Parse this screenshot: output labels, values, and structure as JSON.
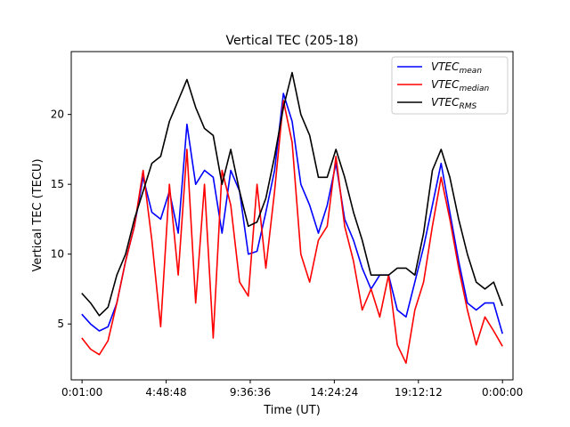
{
  "chart_data": {
    "type": "line",
    "title": "Vertical TEC (205-18)",
    "xlabel": "Time (UT)",
    "ylabel": "Vertical TEC (TECU)",
    "x_unit": "hours (UT)",
    "xlim": [
      -0.6,
      24.6
    ],
    "ylim": [
      1.0,
      24.5
    ],
    "x_ticks": [
      0.0167,
      4.8133,
      9.61,
      14.4067,
      19.2033,
      24.0
    ],
    "x_tick_labels": [
      "0:01:00",
      "4:48:48",
      "9:36:36",
      "14:24:24",
      "19:12:12",
      "0:00:00"
    ],
    "y_ticks": [
      5,
      10,
      15,
      20
    ],
    "y_tick_labels": [
      "5",
      "10",
      "15",
      "20"
    ],
    "grid": false,
    "legend_position": "top-right",
    "x": [
      0.0,
      0.5,
      1.0,
      1.5,
      2.0,
      2.5,
      3.0,
      3.5,
      4.0,
      4.5,
      5.0,
      5.5,
      6.0,
      6.5,
      7.0,
      7.5,
      8.0,
      8.5,
      9.0,
      9.5,
      10.0,
      10.5,
      11.0,
      11.5,
      12.0,
      12.5,
      13.0,
      13.5,
      14.0,
      14.5,
      15.0,
      15.5,
      16.0,
      16.5,
      17.0,
      17.5,
      18.0,
      18.5,
      19.0,
      19.5,
      20.0,
      20.5,
      21.0,
      21.5,
      22.0,
      22.5,
      23.0,
      23.5,
      24.0
    ],
    "series": [
      {
        "name": "VTEC_mean",
        "legend_label_main": "VTEC",
        "legend_label_sub": "mean",
        "color": "#0000ff",
        "values": [
          5.7,
          5.0,
          4.5,
          4.8,
          6.5,
          9.5,
          12.0,
          15.5,
          13.0,
          12.5,
          14.5,
          11.5,
          19.3,
          15.0,
          16.0,
          15.5,
          11.5,
          16.0,
          14.5,
          10.0,
          10.2,
          13.0,
          16.0,
          21.5,
          19.5,
          15.0,
          13.5,
          11.5,
          13.5,
          16.5,
          12.5,
          11.0,
          9.0,
          7.5,
          8.5,
          8.5,
          6.0,
          5.5,
          8.0,
          10.5,
          13.5,
          16.5,
          13.0,
          9.5,
          6.5,
          6.0,
          6.5,
          6.5,
          4.3
        ]
      },
      {
        "name": "VTEC_median",
        "legend_label_main": "VTEC",
        "legend_label_sub": "median",
        "color": "#ff0000",
        "values": [
          4.0,
          3.2,
          2.8,
          3.8,
          6.5,
          9.5,
          12.0,
          16.0,
          11.0,
          4.8,
          15.0,
          8.5,
          17.5,
          6.5,
          15.0,
          4.0,
          16.0,
          13.5,
          8.0,
          7.0,
          15.0,
          9.0,
          14.5,
          21.0,
          18.0,
          10.0,
          8.0,
          11.0,
          12.0,
          17.0,
          12.0,
          9.5,
          6.0,
          7.5,
          5.5,
          8.5,
          3.5,
          2.2,
          6.0,
          8.0,
          12.0,
          15.5,
          12.5,
          9.0,
          6.0,
          3.5,
          5.5,
          4.5,
          3.4
        ]
      },
      {
        "name": "VTEC_RMS",
        "legend_label_main": "VTEC",
        "legend_label_sub": "RMS",
        "color": "#000000",
        "values": [
          7.2,
          6.5,
          5.6,
          6.2,
          8.5,
          10.0,
          12.5,
          14.5,
          16.5,
          17.0,
          19.5,
          21.0,
          22.5,
          20.5,
          19.0,
          18.5,
          15.0,
          17.5,
          14.5,
          12.0,
          12.3,
          14.0,
          17.0,
          20.5,
          23.0,
          20.0,
          18.5,
          15.5,
          15.5,
          17.5,
          15.5,
          13.0,
          11.0,
          8.5,
          8.5,
          8.5,
          9.0,
          9.0,
          8.5,
          11.5,
          16.0,
          17.5,
          15.5,
          12.5,
          10.0,
          8.0,
          7.5,
          8.0,
          6.3
        ]
      }
    ]
  }
}
